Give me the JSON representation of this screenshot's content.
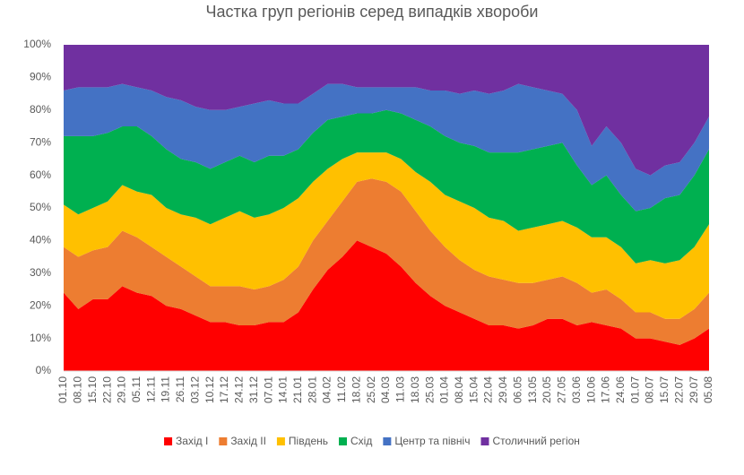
{
  "chart_data": {
    "type": "stacked_area_100",
    "title": "Частка груп регіонів серед випадків хвороби",
    "categories": [
      "01.10",
      "08.10",
      "15.10",
      "22.10",
      "29.10",
      "05.11",
      "12.11",
      "19.11",
      "26.11",
      "03.12",
      "10.12",
      "17.12",
      "24.12",
      "31.12",
      "07.01",
      "14.01",
      "21.01",
      "28.01",
      "04.02",
      "11.02",
      "18.02",
      "25.02",
      "04.03",
      "11.03",
      "18.03",
      "25.03",
      "01.04",
      "08.04",
      "15.04",
      "22.04",
      "29.04",
      "06.05",
      "13.05",
      "20.05",
      "27.05",
      "03.06",
      "10.06",
      "17.06",
      "24.06",
      "01.07",
      "08.07",
      "15.07",
      "22.07",
      "29.07",
      "05.08"
    ],
    "series": [
      {
        "name": "Захід I",
        "color": "#ff0000",
        "values": [
          24,
          19,
          22,
          22,
          26,
          24,
          23,
          20,
          19,
          17,
          15,
          15,
          14,
          14,
          15,
          15,
          18,
          25,
          31,
          35,
          40,
          38,
          36,
          32,
          27,
          23,
          20,
          18,
          16,
          14,
          14,
          13,
          14,
          16,
          16,
          14,
          15,
          14,
          13,
          10,
          10,
          9,
          8,
          10,
          13
        ]
      },
      {
        "name": "Захід II",
        "color": "#ed7d31",
        "values": [
          14,
          16,
          15,
          16,
          17,
          17,
          15,
          15,
          13,
          12,
          11,
          11,
          12,
          11,
          11,
          13,
          14,
          15,
          15,
          17,
          18,
          21,
          22,
          23,
          22,
          20,
          18,
          16,
          15,
          15,
          14,
          14,
          13,
          12,
          13,
          13,
          9,
          11,
          9,
          8,
          8,
          7,
          8,
          9,
          11
        ]
      },
      {
        "name": "Південь",
        "color": "#ffc000",
        "values": [
          13,
          13,
          13,
          14,
          14,
          14,
          16,
          15,
          16,
          18,
          19,
          21,
          23,
          22,
          22,
          22,
          21,
          18,
          16,
          13,
          9,
          8,
          9,
          10,
          12,
          15,
          16,
          18,
          19,
          18,
          18,
          16,
          17,
          17,
          17,
          17,
          17,
          16,
          16,
          15,
          16,
          17,
          18,
          19,
          21
        ]
      },
      {
        "name": "Схід",
        "color": "#00b050",
        "values": [
          21,
          24,
          22,
          21,
          18,
          20,
          18,
          18,
          17,
          17,
          17,
          17,
          17,
          17,
          18,
          16,
          15,
          15,
          15,
          13,
          12,
          12,
          13,
          14,
          16,
          17,
          18,
          18,
          19,
          20,
          21,
          24,
          24,
          24,
          24,
          19,
          16,
          19,
          16,
          16,
          16,
          20,
          20,
          22,
          23
        ]
      },
      {
        "name": "Центр та північ",
        "color": "#4472c4",
        "values": [
          14,
          15,
          15,
          14,
          13,
          12,
          14,
          16,
          18,
          17,
          18,
          16,
          15,
          18,
          17,
          16,
          14,
          12,
          11,
          10,
          8,
          8,
          7,
          8,
          10,
          11,
          14,
          15,
          17,
          18,
          19,
          21,
          19,
          17,
          15,
          17,
          12,
          15,
          16,
          13,
          10,
          10,
          10,
          10,
          10
        ]
      },
      {
        "name": "Столичний регіон",
        "color": "#7030a0",
        "values": [
          14,
          13,
          13,
          13,
          12,
          13,
          14,
          16,
          17,
          19,
          20,
          20,
          19,
          18,
          17,
          18,
          18,
          15,
          12,
          12,
          13,
          13,
          13,
          13,
          13,
          14,
          14,
          15,
          14,
          15,
          14,
          12,
          13,
          14,
          15,
          20,
          31,
          25,
          30,
          38,
          40,
          37,
          36,
          30,
          22
        ]
      }
    ],
    "ylim": [
      0,
      100
    ],
    "yticks": [
      {
        "value": 0,
        "label": "0%"
      },
      {
        "value": 10,
        "label": "10%"
      },
      {
        "value": 20,
        "label": "20%"
      },
      {
        "value": 30,
        "label": "30%"
      },
      {
        "value": 40,
        "label": "40%"
      },
      {
        "value": 50,
        "label": "50%"
      },
      {
        "value": 60,
        "label": "60%"
      },
      {
        "value": 70,
        "label": "70%"
      },
      {
        "value": 80,
        "label": "80%"
      },
      {
        "value": 90,
        "label": "90%"
      },
      {
        "value": 100,
        "label": "100%"
      }
    ],
    "legend": "bottom"
  }
}
